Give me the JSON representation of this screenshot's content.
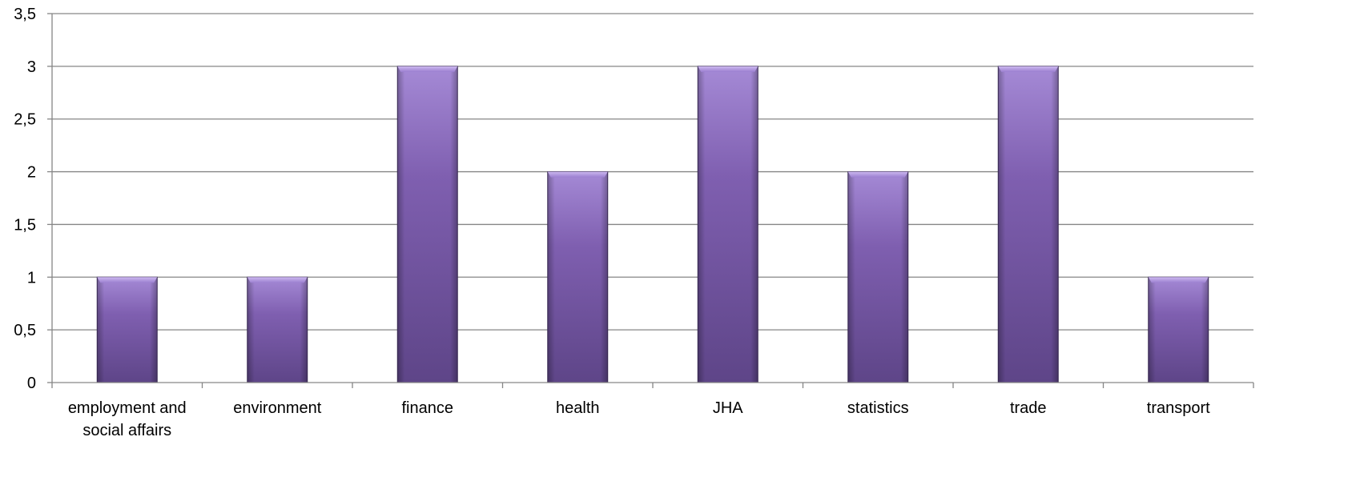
{
  "chart_data": {
    "type": "bar",
    "categories": [
      [
        "employment and",
        "social affairs"
      ],
      [
        "environment"
      ],
      [
        "finance"
      ],
      [
        "health"
      ],
      [
        "JHA"
      ],
      [
        "statistics"
      ],
      [
        "trade"
      ],
      [
        "transport"
      ]
    ],
    "values": [
      1,
      1,
      3,
      2,
      3,
      2,
      3,
      1
    ],
    "ylim": [
      0,
      3.5
    ],
    "yticks": [
      "0",
      "0,5",
      "1",
      "1,5",
      "2",
      "2,5",
      "3",
      "3,5"
    ],
    "grid": true,
    "legend": "none",
    "colors": {
      "bar_top": "#a58ad6",
      "bar_mid": "#7f5fb0",
      "bar_bottom": "#5e4588",
      "bar_edge": "#3f2d5c",
      "grid": "#868686"
    }
  }
}
